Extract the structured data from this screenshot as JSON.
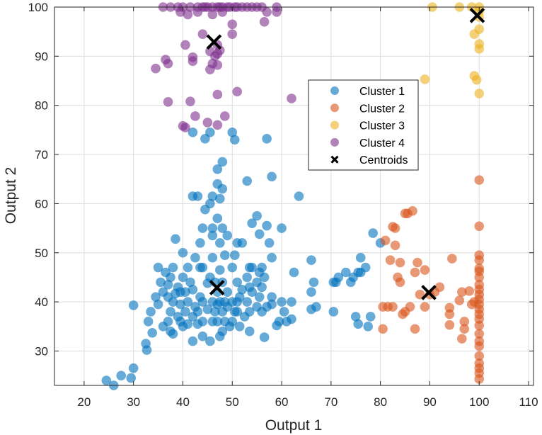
{
  "chart_data": {
    "type": "scatter",
    "title": "",
    "xlabel": "Output 1",
    "ylabel": "Output 2",
    "xlim": [
      14,
      111
    ],
    "ylim": [
      23,
      100
    ],
    "xticks": [
      20,
      30,
      40,
      50,
      60,
      70,
      80,
      90,
      100,
      110
    ],
    "yticks": [
      30,
      40,
      50,
      60,
      70,
      80,
      90,
      100
    ],
    "grid": true,
    "legend_position": "upper-right-inside",
    "colors": {
      "cluster1": "#0072BD",
      "cluster2": "#D95319",
      "cluster3": "#EDB120",
      "cluster4": "#7E2F8E",
      "centroid": "#000000"
    },
    "series": [
      {
        "name": "Cluster 1",
        "color": "#0072BD",
        "points": [
          [
            24.5,
            24
          ],
          [
            26,
            23
          ],
          [
            27.5,
            25
          ],
          [
            29.5,
            24.5
          ],
          [
            30,
            26.5
          ],
          [
            30,
            39.3
          ],
          [
            32.5,
            31.5
          ],
          [
            32.7,
            30.2
          ],
          [
            33,
            36
          ],
          [
            33.5,
            38
          ],
          [
            33.8,
            33.7
          ],
          [
            34.5,
            41
          ],
          [
            35,
            39.5
          ],
          [
            35,
            47
          ],
          [
            35.5,
            44
          ],
          [
            36,
            35
          ],
          [
            36,
            42
          ],
          [
            36.5,
            46
          ],
          [
            37,
            36
          ],
          [
            37,
            41
          ],
          [
            37,
            43.5
          ],
          [
            37.5,
            34
          ],
          [
            37.5,
            38
          ],
          [
            37.5,
            45
          ],
          [
            38,
            47
          ],
          [
            38,
            33.5
          ],
          [
            38,
            40
          ],
          [
            38.5,
            41.7
          ],
          [
            38.5,
            52.8
          ],
          [
            39,
            37
          ],
          [
            39,
            43
          ],
          [
            39.5,
            36
          ],
          [
            39.5,
            39.5
          ],
          [
            39.5,
            42
          ],
          [
            40,
            35
          ],
          [
            40,
            45
          ],
          [
            40,
            50
          ],
          [
            40.5,
            38
          ],
          [
            40.5,
            42
          ],
          [
            41,
            35.5
          ],
          [
            41,
            47
          ],
          [
            41,
            40
          ],
          [
            41.5,
            44
          ],
          [
            42,
            32
          ],
          [
            42,
            37
          ],
          [
            42,
            42.5
          ],
          [
            42,
            61.5
          ],
          [
            42,
            74.5
          ],
          [
            42.5,
            39
          ],
          [
            42.5,
            49
          ],
          [
            43,
            35.5
          ],
          [
            43,
            61.5
          ],
          [
            43,
            38
          ],
          [
            43.5,
            47
          ],
          [
            43.5,
            52
          ],
          [
            43.5,
            41
          ],
          [
            44,
            33
          ],
          [
            44,
            36
          ],
          [
            44,
            40
          ],
          [
            44,
            55
          ],
          [
            44,
            47
          ],
          [
            44.5,
            58.8
          ],
          [
            44.5,
            73.2
          ],
          [
            45,
            43.8
          ],
          [
            45,
            38.5
          ],
          [
            45.5,
            32
          ],
          [
            45.5,
            45
          ],
          [
            45.5,
            60
          ],
          [
            45.5,
            74.5
          ],
          [
            46,
            36
          ],
          [
            46,
            40
          ],
          [
            46,
            49
          ],
          [
            46,
            53.5
          ],
          [
            46,
            55
          ],
          [
            46,
            61.5
          ],
          [
            46.5,
            38
          ],
          [
            46.5,
            44
          ],
          [
            47,
            36
          ],
          [
            47,
            39.5
          ],
          [
            47,
            42
          ],
          [
            47,
            57
          ],
          [
            47,
            64
          ],
          [
            47,
            67
          ],
          [
            47.5,
            33
          ],
          [
            47.5,
            40
          ],
          [
            47.5,
            46.5
          ],
          [
            47.5,
            52
          ],
          [
            47.5,
            61
          ],
          [
            48,
            34
          ],
          [
            48,
            38
          ],
          [
            48,
            44
          ],
          [
            48,
            55
          ],
          [
            48,
            63
          ],
          [
            48,
            68.5
          ],
          [
            48.5,
            36
          ],
          [
            48.5,
            40
          ],
          [
            48.5,
            49.5
          ],
          [
            49,
            39
          ],
          [
            49,
            42
          ],
          [
            49,
            53.5
          ],
          [
            49.5,
            35
          ],
          [
            50,
            36
          ],
          [
            50,
            40
          ],
          [
            50,
            47
          ],
          [
            50,
            74.5
          ],
          [
            50.5,
            38
          ],
          [
            50.5,
            49.5
          ],
          [
            50.5,
            73
          ],
          [
            51,
            38
          ],
          [
            51,
            40
          ],
          [
            51,
            44
          ],
          [
            51,
            52
          ],
          [
            51.5,
            35
          ],
          [
            51.5,
            41
          ],
          [
            52,
            42.5
          ],
          [
            52,
            52
          ],
          [
            52.5,
            37
          ],
          [
            53,
            40
          ],
          [
            53,
            45
          ],
          [
            53,
            64.6
          ],
          [
            53.5,
            34
          ],
          [
            53.5,
            38
          ],
          [
            53.5,
            43
          ],
          [
            53.5,
            47
          ],
          [
            54,
            42
          ],
          [
            54,
            47
          ],
          [
            54,
            56
          ],
          [
            55,
            44
          ],
          [
            55,
            39
          ],
          [
            55,
            57.5
          ],
          [
            55.5,
            41
          ],
          [
            55.5,
            46
          ],
          [
            55.5,
            53.8
          ],
          [
            56,
            38
          ],
          [
            56,
            43
          ],
          [
            56,
            47
          ],
          [
            56.5,
            32.8
          ],
          [
            56.5,
            45
          ],
          [
            57,
            39
          ],
          [
            57,
            55.5
          ],
          [
            57,
            73.2
          ],
          [
            57.5,
            52
          ],
          [
            58,
            39.5
          ],
          [
            58,
            41
          ],
          [
            58,
            49
          ],
          [
            58,
            65.5
          ],
          [
            59,
            35.2
          ],
          [
            59.5,
            36
          ],
          [
            60,
            40
          ],
          [
            60,
            55
          ],
          [
            60.5,
            38
          ],
          [
            61,
            36
          ],
          [
            62,
            36.5
          ],
          [
            62,
            40
          ],
          [
            62.5,
            46
          ],
          [
            63.5,
            61.5
          ],
          [
            66,
            38.5
          ],
          [
            66,
            42
          ],
          [
            66,
            48.5
          ],
          [
            66.5,
            44
          ],
          [
            67,
            39
          ],
          [
            70.5,
            38
          ],
          [
            70.5,
            44
          ],
          [
            71,
            44
          ],
          [
            71.5,
            45
          ],
          [
            73,
            46
          ],
          [
            74,
            44
          ],
          [
            74.5,
            45
          ],
          [
            75,
            37
          ],
          [
            75.5,
            46
          ],
          [
            75.5,
            35.5
          ],
          [
            76,
            46
          ],
          [
            76,
            49
          ],
          [
            77,
            47
          ],
          [
            77.5,
            35
          ],
          [
            78,
            37
          ],
          [
            78.5,
            54
          ],
          [
            80,
            52
          ]
        ]
      },
      {
        "name": "Cluster 2",
        "color": "#D95319",
        "points": [
          [
            80.5,
            34.5
          ],
          [
            80.5,
            39
          ],
          [
            81,
            52.5
          ],
          [
            81.5,
            39
          ],
          [
            82,
            48.5
          ],
          [
            82.5,
            39
          ],
          [
            82.5,
            55.3
          ],
          [
            83,
            55
          ],
          [
            83,
            51.5
          ],
          [
            83.5,
            45
          ],
          [
            84,
            44
          ],
          [
            84,
            48
          ],
          [
            84.5,
            37.5
          ],
          [
            85,
            58
          ],
          [
            85,
            38
          ],
          [
            85.5,
            58
          ],
          [
            86,
            39
          ],
          [
            86.5,
            58.5
          ],
          [
            87,
            46
          ],
          [
            87,
            34.5
          ],
          [
            87.5,
            48
          ],
          [
            88,
            41.5
          ],
          [
            89,
            46.5
          ],
          [
            89,
            39
          ],
          [
            90,
            41.5
          ],
          [
            91,
            42
          ],
          [
            92,
            43
          ],
          [
            94,
            38.8
          ],
          [
            94,
            35.3
          ],
          [
            94,
            37.5
          ],
          [
            94.5,
            48.8
          ],
          [
            96,
            40.3
          ],
          [
            96.5,
            32.5
          ],
          [
            96.5,
            42
          ],
          [
            97,
            34.5
          ],
          [
            97,
            36
          ],
          [
            98,
            42.2
          ],
          [
            98.5,
            39.5
          ],
          [
            99,
            40
          ],
          [
            100,
            64.8
          ],
          [
            100,
            55.4
          ],
          [
            100,
            49.5
          ],
          [
            100,
            48.5
          ],
          [
            100,
            46.8
          ],
          [
            100,
            46.2
          ],
          [
            100,
            45
          ],
          [
            100,
            43.5
          ],
          [
            100,
            42.5
          ],
          [
            100,
            41.5
          ],
          [
            100,
            40.5
          ],
          [
            100,
            39.5
          ],
          [
            100,
            38.5
          ],
          [
            100,
            37.5
          ],
          [
            100,
            36.5
          ],
          [
            100,
            35.2
          ],
          [
            100,
            33.5
          ],
          [
            100,
            32
          ],
          [
            100,
            31
          ],
          [
            100,
            29
          ],
          [
            100,
            27.5
          ],
          [
            100,
            26.5
          ],
          [
            100,
            25.5
          ],
          [
            100,
            24.3
          ]
        ]
      },
      {
        "name": "Cluster 3",
        "color": "#EDB120",
        "points": [
          [
            89,
            85.3
          ],
          [
            90.5,
            100
          ],
          [
            96,
            100
          ],
          [
            98.5,
            100
          ],
          [
            99,
            94.5
          ],
          [
            99,
            86
          ],
          [
            99.5,
            85.2
          ],
          [
            100,
            100
          ],
          [
            100,
            99.2
          ],
          [
            100,
            98
          ],
          [
            100,
            95.5
          ],
          [
            100,
            92.5
          ],
          [
            100,
            91.5
          ],
          [
            100,
            82.4
          ]
        ]
      },
      {
        "name": "Cluster 4",
        "color": "#7E2F8E",
        "points": [
          [
            34.5,
            87.5
          ],
          [
            36,
            100
          ],
          [
            36.5,
            89.3
          ],
          [
            37,
            88.5
          ],
          [
            37,
            80.7
          ],
          [
            37.5,
            100
          ],
          [
            39,
            100
          ],
          [
            39.5,
            99
          ],
          [
            40,
            100
          ],
          [
            40,
            75.8
          ],
          [
            40.5,
            92.3
          ],
          [
            40.5,
            75.5
          ],
          [
            41,
            98.5
          ],
          [
            41.5,
            80.8
          ],
          [
            41.5,
            100
          ],
          [
            42,
            89
          ],
          [
            42,
            89.8
          ],
          [
            42.5,
            77.8
          ],
          [
            43,
            100
          ],
          [
            43,
            99
          ],
          [
            44,
            100
          ],
          [
            44,
            94.5
          ],
          [
            44.5,
            100
          ],
          [
            45,
            100
          ],
          [
            45,
            76.5
          ],
          [
            45.5,
            87.3
          ],
          [
            45.5,
            91
          ],
          [
            46,
            98.5
          ],
          [
            46,
            100
          ],
          [
            46,
            88.5
          ],
          [
            46.5,
            90
          ],
          [
            47,
            100
          ],
          [
            47,
            92.3
          ],
          [
            47,
            90.5
          ],
          [
            47,
            88.2
          ],
          [
            47,
            82.2
          ],
          [
            47,
            76
          ],
          [
            47.5,
            100
          ],
          [
            47.5,
            91.2
          ],
          [
            48,
            99
          ],
          [
            48,
            100
          ],
          [
            48.5,
            77.8
          ],
          [
            49,
            100
          ],
          [
            49.5,
            100
          ],
          [
            50,
            96.5
          ],
          [
            50,
            94.5
          ],
          [
            50.5,
            100
          ],
          [
            51,
            100
          ],
          [
            51,
            82.8
          ],
          [
            52,
            100
          ],
          [
            53,
            100
          ],
          [
            54,
            100
          ],
          [
            55,
            100
          ],
          [
            56,
            100
          ],
          [
            56.5,
            97
          ],
          [
            57,
            99
          ],
          [
            59,
            99
          ],
          [
            59,
            100
          ],
          [
            62,
            81.4
          ]
        ]
      },
      {
        "name": "Centroids",
        "color": "#000000",
        "marker": "x",
        "points": [
          [
            46.3,
            92.9
          ],
          [
            46.9,
            42.9
          ],
          [
            89.8,
            41.9
          ],
          [
            99.6,
            98.3
          ]
        ]
      }
    ]
  }
}
